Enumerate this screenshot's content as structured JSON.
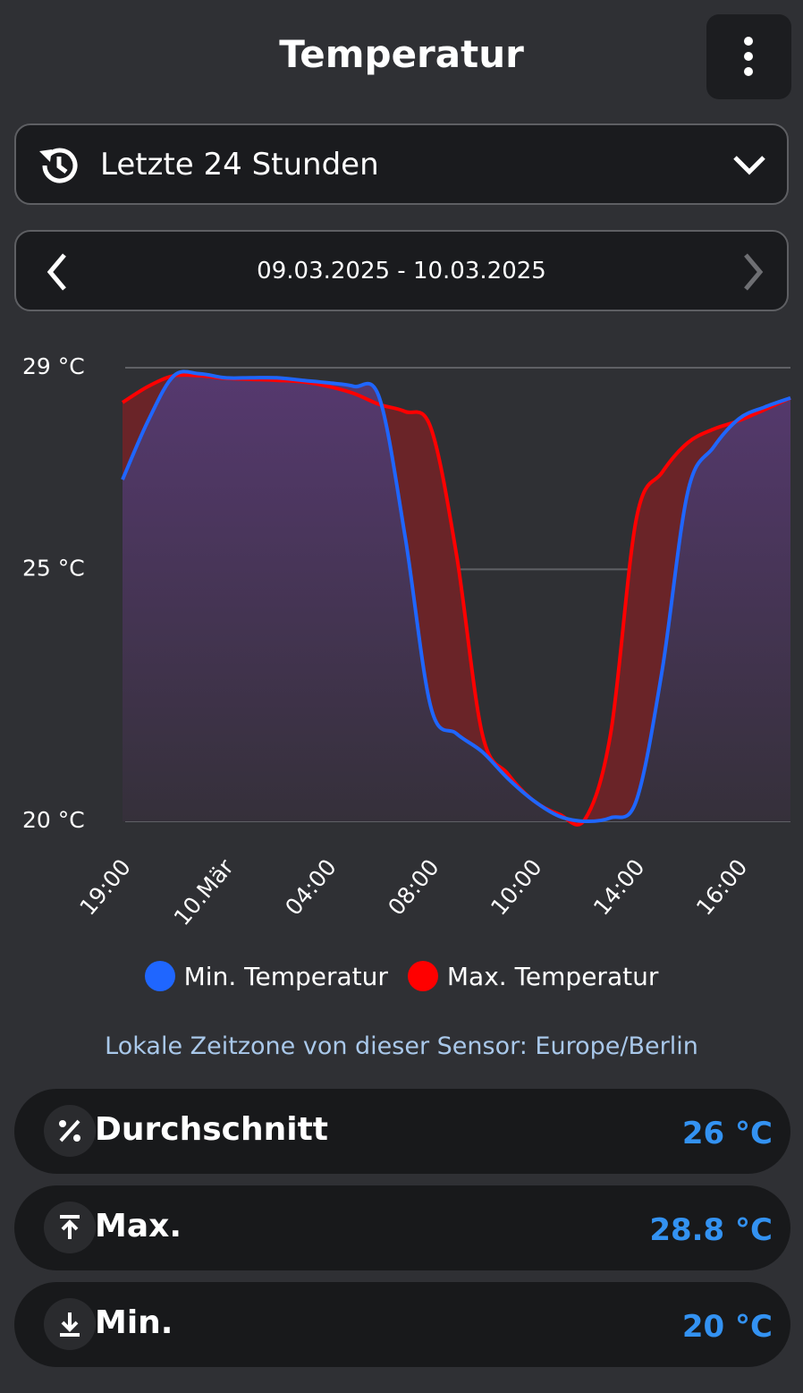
{
  "header": {
    "title": "Temperatur"
  },
  "period_select": {
    "label": "Letzte 24 Stunden"
  },
  "date_nav": {
    "range": "09.03.2025 - 10.03.2025"
  },
  "chart_data": {
    "type": "line",
    "categories": [
      "19:00",
      null,
      null,
      null,
      "10.Mär",
      null,
      null,
      null,
      "04:00",
      null,
      null,
      null,
      "08:00",
      null,
      null,
      null,
      "10:00",
      null,
      null,
      null,
      "14:00",
      null,
      null,
      null,
      "16:00",
      null,
      null
    ],
    "series": [
      {
        "name": "Min. Temperatur",
        "color": "#1f66ff",
        "values": [
          26.78,
          27.95,
          28.84,
          28.88,
          28.8,
          28.8,
          28.8,
          28.75,
          28.7,
          28.63,
          28.4,
          25.65,
          22.27,
          21.74,
          21.38,
          20.85,
          20.41,
          20.1,
          20,
          20.07,
          20.41,
          22.98,
          26.53,
          27.42,
          27.99,
          28.22,
          28.4
        ]
      },
      {
        "name": "Max. Temperatur",
        "color": "#ff0000",
        "values": [
          28.31,
          28.63,
          28.84,
          28.84,
          28.79,
          28.77,
          28.75,
          28.72,
          28.63,
          28.49,
          28.27,
          28.13,
          27.81,
          25.29,
          21.74,
          20.94,
          20.41,
          20.14,
          20.04,
          21.74,
          26.0,
          26.92,
          27.51,
          27.78,
          27.95,
          28.17,
          28.4
        ]
      }
    ],
    "ylim": [
      20,
      29
    ],
    "yticks": [
      {
        "value": 20,
        "label": "20 °C"
      },
      {
        "value": 25,
        "label": "25 °C"
      },
      {
        "value": 29,
        "label": "29 °C"
      }
    ],
    "grid": true
  },
  "timezone_note": "Lokale Zeitzone von dieser Sensor: Europe/Berlin",
  "stats": [
    {
      "label": "Durchschnitt",
      "value": "26 °C"
    },
    {
      "label": "Max.",
      "value": "28.8 °C"
    },
    {
      "label": "Min.",
      "value": "20 °C"
    }
  ]
}
